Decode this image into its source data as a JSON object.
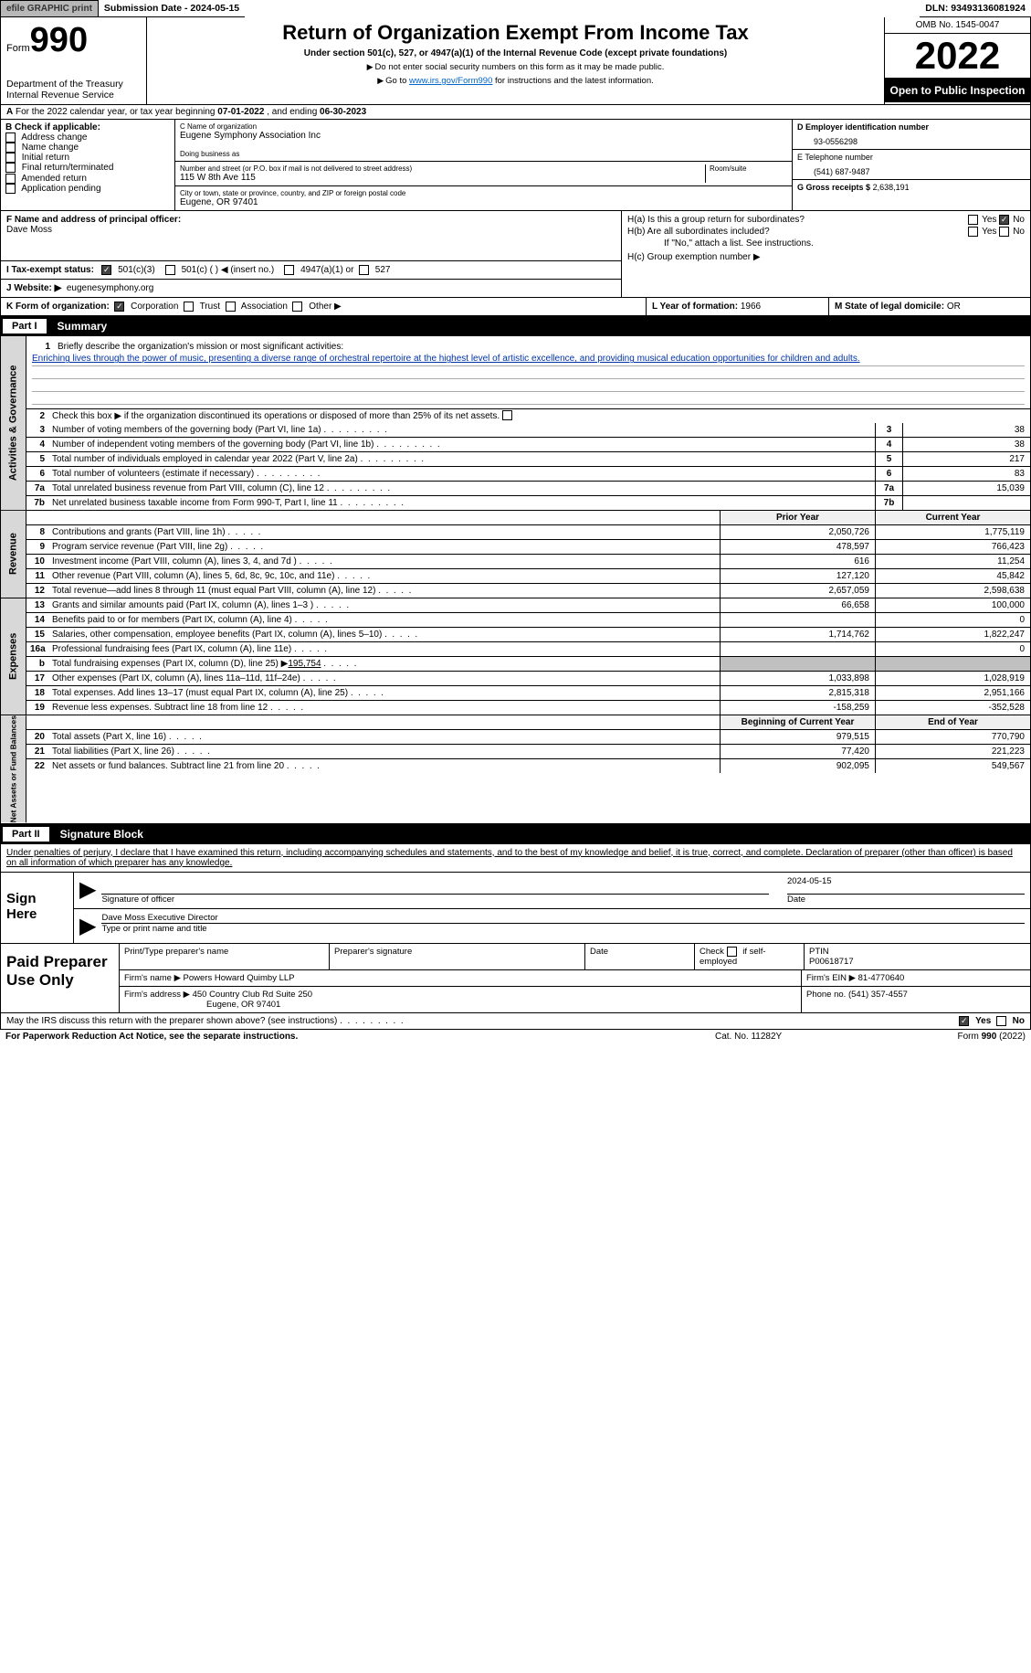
{
  "colors": {
    "header_btn": "#b8b8b8",
    "part_bg": "#000000",
    "part_fg": "#ffffff",
    "link": "#0066cc",
    "miss": "#0033aa"
  },
  "top": {
    "efile_btn": "efile GRAPHIC print",
    "submission": "Submission Date - 2024-05-15",
    "dln": "DLN: 93493136081924"
  },
  "hdr": {
    "form_word": "Form",
    "form_num": "990",
    "dept": "Department of the Treasury",
    "irs": "Internal Revenue Service",
    "title": "Return of Organization Exempt From Income Tax",
    "sub1": "Under section 501(c), 527, or 4947(a)(1) of the Internal Revenue Code (except private foundations)",
    "sub2": "Do not enter social security numbers on this form as it may be made public.",
    "sub3_a": "Go to ",
    "sub3_link": "www.irs.gov/Form990",
    "sub3_b": " for instructions and the latest information.",
    "omb": "OMB No. 1545-0047",
    "year": "2022",
    "open": "Open to Public Inspection"
  },
  "lineA": {
    "prefix": "A",
    "text": " For the 2022 calendar year, or tax year beginning ",
    "begin": "07-01-2022",
    "mid": "   , and ending ",
    "end": "06-30-2023"
  },
  "B": {
    "label": "B Check if applicable:",
    "items": [
      "Address change",
      "Name change",
      "Initial return",
      "Final return/terminated",
      "Amended return",
      "Application pending"
    ]
  },
  "C": {
    "name_label": "C Name of organization",
    "name": "Eugene Symphony Association Inc",
    "dba_label": "Doing business as",
    "dba": "",
    "street_label": "Number and street (or P.O. box if mail is not delivered to street address)",
    "room_label": "Room/suite",
    "street": "115 W 8th Ave 115",
    "city_label": "City or town, state or province, country, and ZIP or foreign postal code",
    "city": "Eugene, OR  97401"
  },
  "D": {
    "ein_label": "D Employer identification number",
    "ein": "93-0556298",
    "tel_label": "E Telephone number",
    "tel": "(541) 687-9487",
    "gross_label": "G Gross receipts $",
    "gross": "2,638,191"
  },
  "F": {
    "label": "F  Name and address of principal officer:",
    "name": "Dave Moss"
  },
  "H": {
    "a": "H(a)  Is this a group return for subordinates?",
    "b": "H(b)  Are all subordinates included?",
    "note": "If \"No,\" attach a list. See instructions.",
    "c": "H(c)  Group exemption number ▶",
    "yes": "Yes",
    "no": "No"
  },
  "I": {
    "label": "I   Tax-exempt status:",
    "o1": "501(c)(3)",
    "o2": "501(c) (  ) ◀ (insert no.)",
    "o3": "4947(a)(1) or",
    "o4": "527"
  },
  "J": {
    "label": "J  Website: ▶",
    "val": "eugenesymphony.org"
  },
  "K": {
    "label": "K Form of organization:",
    "o1": "Corporation",
    "o2": "Trust",
    "o3": "Association",
    "o4": "Other ▶"
  },
  "L": {
    "label": "L Year of formation:",
    "val": "1966"
  },
  "M": {
    "label": "M State of legal domicile:",
    "val": "OR"
  },
  "parts": {
    "p1": "Part I",
    "p1t": "Summary",
    "p2": "Part II",
    "p2t": "Signature Block"
  },
  "vtabs": {
    "ag": "Activities & Governance",
    "rev": "Revenue",
    "exp": "Expenses",
    "na": "Net Assets or Fund Balances"
  },
  "s1": {
    "num": "1",
    "label": "Briefly describe the organization's mission or most significant activities:",
    "text": "Enriching lives through the power of music, presenting a diverse range of orchestral repertoire at the highest level of artistic excellence, and providing musical education opportunities for children and adults."
  },
  "s2": {
    "num": "2",
    "text": "Check this box ▶       if the organization discontinued its operations or disposed of more than 25% of its net assets."
  },
  "rows_ag": [
    {
      "n": "3",
      "t": "Number of voting members of the governing body (Part VI, line 1a)",
      "v": "38"
    },
    {
      "n": "4",
      "t": "Number of independent voting members of the governing body (Part VI, line 1b)",
      "v": "38"
    },
    {
      "n": "5",
      "t": "Total number of individuals employed in calendar year 2022 (Part V, line 2a)",
      "v": "217"
    },
    {
      "n": "6",
      "t": "Total number of volunteers (estimate if necessary)",
      "v": "83"
    },
    {
      "n": "7a",
      "t": "Total unrelated business revenue from Part VIII, column (C), line 12",
      "v": "15,039"
    },
    {
      "n": "7b",
      "t": "Net unrelated business taxable income from Form 990-T, Part I, line 11",
      "v": ""
    }
  ],
  "pyh": "Prior Year",
  "cyh": "Current Year",
  "bcyh": "Beginning of Current Year",
  "eoyh": "End of Year",
  "rows_rev": [
    {
      "n": "8",
      "t": "Contributions and grants (Part VIII, line 1h)",
      "py": "2,050,726",
      "cy": "1,775,119"
    },
    {
      "n": "9",
      "t": "Program service revenue (Part VIII, line 2g)",
      "py": "478,597",
      "cy": "766,423"
    },
    {
      "n": "10",
      "t": "Investment income (Part VIII, column (A), lines 3, 4, and 7d )",
      "py": "616",
      "cy": "11,254"
    },
    {
      "n": "11",
      "t": "Other revenue (Part VIII, column (A), lines 5, 6d, 8c, 9c, 10c, and 11e)",
      "py": "127,120",
      "cy": "45,842"
    },
    {
      "n": "12",
      "t": "Total revenue—add lines 8 through 11 (must equal Part VIII, column (A), line 12)",
      "py": "2,657,059",
      "cy": "2,598,638"
    }
  ],
  "rows_exp": [
    {
      "n": "13",
      "t": "Grants and similar amounts paid (Part IX, column (A), lines 1–3 )",
      "py": "66,658",
      "cy": "100,000"
    },
    {
      "n": "14",
      "t": "Benefits paid to or for members (Part IX, column (A), line 4)",
      "py": "",
      "cy": "0"
    },
    {
      "n": "15",
      "t": "Salaries, other compensation, employee benefits (Part IX, column (A), lines 5–10)",
      "py": "1,714,762",
      "cy": "1,822,247"
    },
    {
      "n": "16a",
      "t": "Professional fundraising fees (Part IX, column (A), line 11e)",
      "py": "",
      "cy": "0"
    },
    {
      "n": "b",
      "t": "Total fundraising expenses (Part IX, column (D), line 25) ▶",
      "py": "gray",
      "cy": "gray",
      "ex": "195,754"
    },
    {
      "n": "17",
      "t": "Other expenses (Part IX, column (A), lines 11a–11d, 11f–24e)",
      "py": "1,033,898",
      "cy": "1,028,919"
    },
    {
      "n": "18",
      "t": "Total expenses. Add lines 13–17 (must equal Part IX, column (A), line 25)",
      "py": "2,815,318",
      "cy": "2,951,166"
    },
    {
      "n": "19",
      "t": "Revenue less expenses. Subtract line 18 from line 12",
      "py": "-158,259",
      "cy": "-352,528"
    }
  ],
  "rows_na": [
    {
      "n": "20",
      "t": "Total assets (Part X, line 16)",
      "py": "979,515",
      "cy": "770,790"
    },
    {
      "n": "21",
      "t": "Total liabilities (Part X, line 26)",
      "py": "77,420",
      "cy": "221,223"
    },
    {
      "n": "22",
      "t": "Net assets or fund balances. Subtract line 21 from line 20",
      "py": "902,095",
      "cy": "549,567"
    }
  ],
  "penalties": "Under penalties of perjury, I declare that I have examined this return, including accompanying schedules and statements, and to the best of my knowledge and belief, it is true, correct, and complete. Declaration of preparer (other than officer) is based on all information of which preparer has any knowledge.",
  "sign": {
    "label": "Sign Here",
    "sig_label": "Signature of officer",
    "date_label": "Date",
    "date": "2024-05-15",
    "name": "Dave Moss  Executive Director",
    "name_label": "Type or print name and title"
  },
  "prep": {
    "label": "Paid Preparer Use Only",
    "r1": {
      "c1": "Print/Type preparer's name",
      "c2": "Preparer's signature",
      "c3": "Date",
      "c4a": "Check",
      "c4b": "if self-employed",
      "c5l": "PTIN",
      "c5": "P00618717"
    },
    "r2": {
      "l": "Firm's name    ▶",
      "v": "Powers Howard Quimby LLP",
      "einl": "Firm's EIN ▶",
      "ein": "81-4770640"
    },
    "r3": {
      "l": "Firm's address ▶",
      "v1": "450 Country Club Rd Suite 250",
      "v2": "Eugene, OR  97401",
      "phl": "Phone no.",
      "ph": "(541) 357-4557"
    }
  },
  "discuss": {
    "text": "May the IRS discuss this return with the preparer shown above? (see instructions)",
    "yes": "Yes",
    "no": "No"
  },
  "footer": {
    "l": "For Paperwork Reduction Act Notice, see the separate instructions.",
    "c": "Cat. No. 11282Y",
    "r": "Form 990 (2022)"
  }
}
